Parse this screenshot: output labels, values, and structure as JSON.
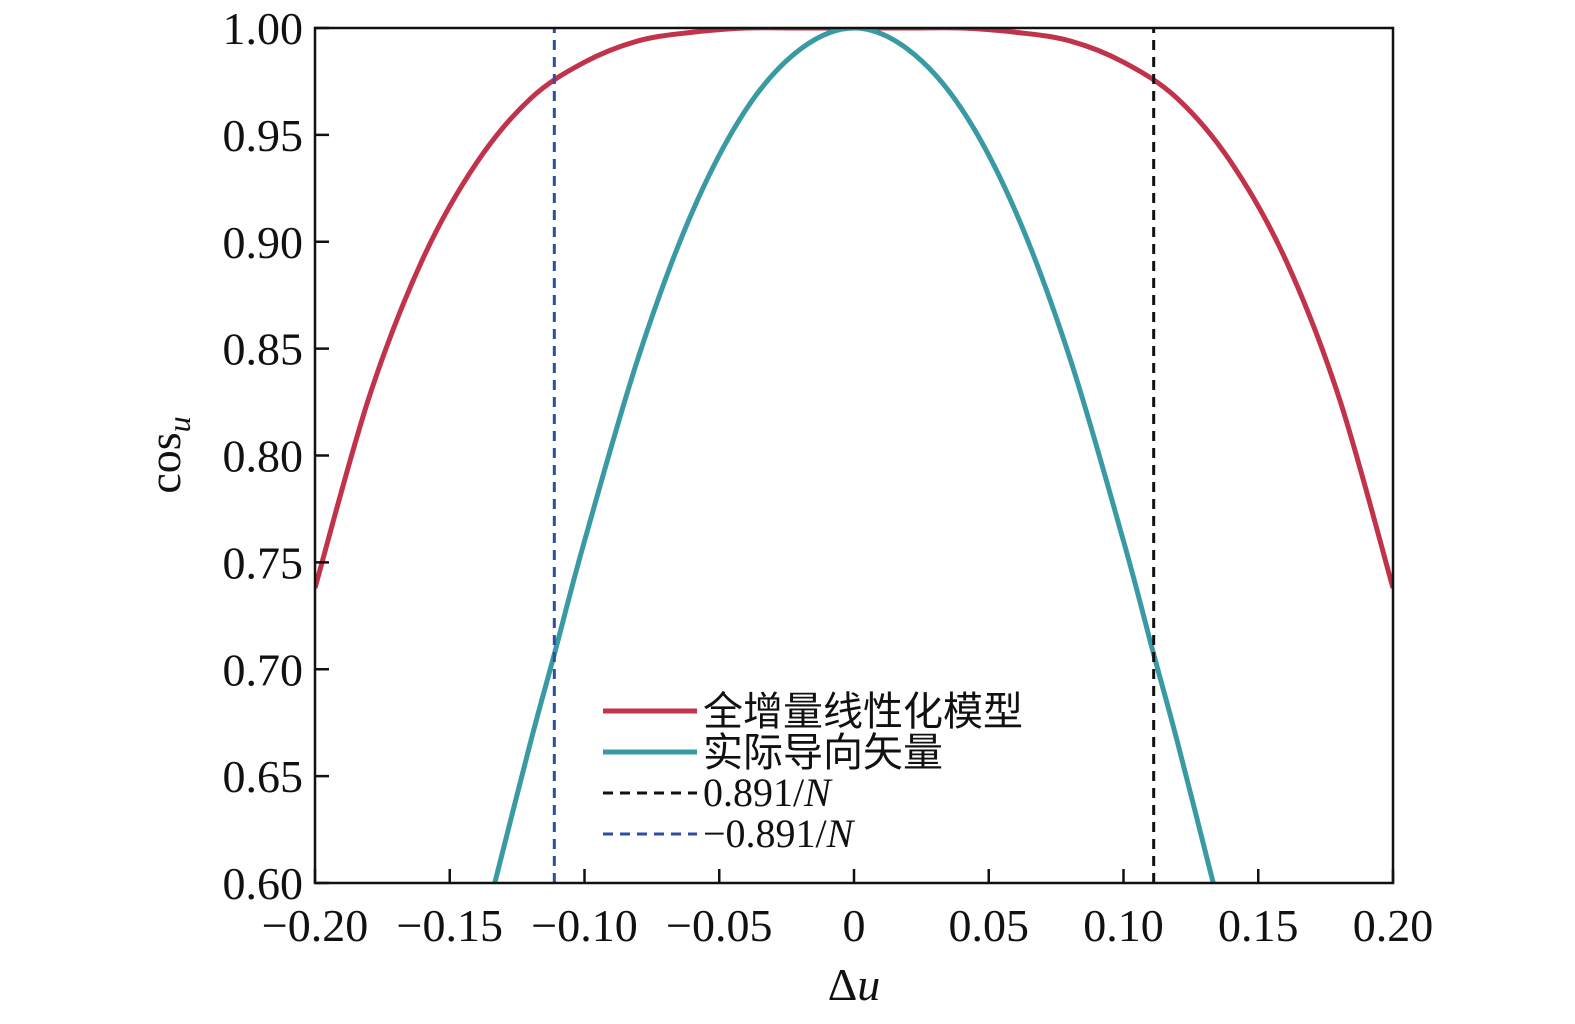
{
  "chart_data": {
    "type": "line",
    "xlabel_main": "Δ",
    "xlabel_var": "u",
    "ylabel_main": "cos",
    "ylabel_sub": "u",
    "xlim": [
      -0.2,
      0.2
    ],
    "ylim": [
      0.6,
      1.0
    ],
    "xticks": [
      -0.2,
      -0.15,
      -0.1,
      -0.05,
      0,
      0.05,
      0.1,
      0.15,
      0.2
    ],
    "xtick_labels": [
      "−0.20",
      "−0.15",
      "−0.10",
      "−0.05",
      "0",
      "0.05",
      "0.10",
      "0.15",
      "0.20"
    ],
    "yticks": [
      0.6,
      0.65,
      0.7,
      0.75,
      0.8,
      0.85,
      0.9,
      0.95,
      1.0
    ],
    "ytick_labels": [
      "0.60",
      "0.65",
      "0.70",
      "0.75",
      "0.80",
      "0.85",
      "0.90",
      "0.95",
      "1.00"
    ],
    "grid": false,
    "legend_position": "lower-center",
    "series": [
      {
        "name": "全增量线性化模型",
        "color": "#c0334a",
        "style": "solid",
        "x": [
          -0.2,
          -0.18,
          -0.16,
          -0.14,
          -0.12,
          -0.1,
          -0.08,
          -0.06,
          -0.04,
          -0.02,
          0,
          0.02,
          0.04,
          0.06,
          0.08,
          0.1,
          0.12,
          0.14,
          0.16,
          0.18,
          0.2
        ],
        "y": [
          0.738,
          0.827,
          0.892,
          0.937,
          0.967,
          0.984,
          0.994,
          0.998,
          1.0,
          1.0,
          1.0,
          1.0,
          1.0,
          0.998,
          0.994,
          0.984,
          0.967,
          0.937,
          0.892,
          0.827,
          0.738
        ]
      },
      {
        "name": "实际导向矢量",
        "color": "#3a9aa3",
        "style": "solid",
        "x": [
          -0.1333,
          -0.12,
          -0.1112,
          -0.1,
          -0.08,
          -0.06,
          -0.04,
          -0.02,
          0,
          0.02,
          0.04,
          0.06,
          0.08,
          0.1,
          0.1112,
          0.12,
          0.1333
        ],
        "y": [
          0.6,
          0.666,
          0.707,
          0.76,
          0.846,
          0.914,
          0.962,
          0.99,
          1.0,
          0.99,
          0.962,
          0.914,
          0.846,
          0.76,
          0.707,
          0.666,
          0.6
        ]
      },
      {
        "name": "0.891/N",
        "name_main": "0.891/",
        "name_var": "N",
        "color": "#111111",
        "style": "dashed",
        "x": [
          0.1112,
          0.1112
        ],
        "y": [
          0.6,
          1.0
        ]
      },
      {
        "name": "−0.891/N",
        "name_main": "−0.891/",
        "name_var": "N",
        "color": "#2d4fa3",
        "style": "dashed",
        "x": [
          -0.1112,
          -0.1112
        ],
        "y": [
          0.6,
          1.0
        ]
      }
    ]
  }
}
